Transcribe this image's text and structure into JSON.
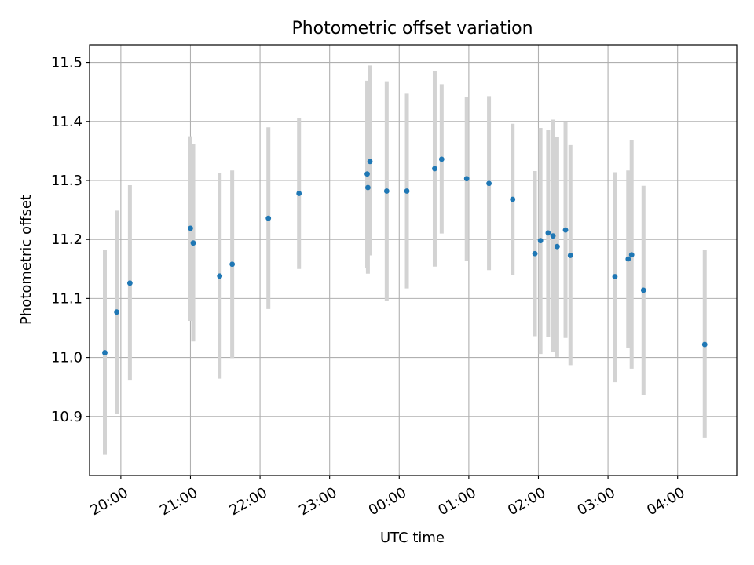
{
  "chart_data": {
    "type": "scatter",
    "title": "Photometric offset variation",
    "xlabel": "UTC time",
    "ylabel": "Photometric offset",
    "x_unit": "UTC clock time (hours; ticks after 24:00 wrap to next day)",
    "xlim": [
      19.55,
      28.85
    ],
    "ylim": [
      10.8,
      11.53
    ],
    "grid": true,
    "x_ticks": [
      {
        "value": 20,
        "label": "20:00"
      },
      {
        "value": 21,
        "label": "21:00"
      },
      {
        "value": 22,
        "label": "22:00"
      },
      {
        "value": 23,
        "label": "23:00"
      },
      {
        "value": 24,
        "label": "00:00"
      },
      {
        "value": 25,
        "label": "01:00"
      },
      {
        "value": 26,
        "label": "02:00"
      },
      {
        "value": 27,
        "label": "03:00"
      },
      {
        "value": 28,
        "label": "04:00"
      }
    ],
    "y_ticks": [
      {
        "value": 10.9,
        "label": "10.9"
      },
      {
        "value": 11.0,
        "label": "11.0"
      },
      {
        "value": 11.1,
        "label": "11.1"
      },
      {
        "value": 11.2,
        "label": "11.2"
      },
      {
        "value": 11.3,
        "label": "11.3"
      },
      {
        "value": 11.4,
        "label": "11.4"
      },
      {
        "value": 11.5,
        "label": "11.5"
      }
    ],
    "marker_color": "#1f77b4",
    "errorbar_color": "#d3d3d3",
    "points": [
      {
        "x": 19.77,
        "y": 11.008,
        "lo": 10.835,
        "hi": 11.182
      },
      {
        "x": 19.94,
        "y": 11.077,
        "lo": 10.905,
        "hi": 11.249
      },
      {
        "x": 20.13,
        "y": 11.126,
        "lo": 10.962,
        "hi": 11.292
      },
      {
        "x": 21.0,
        "y": 11.219,
        "lo": 11.062,
        "hi": 11.375
      },
      {
        "x": 21.04,
        "y": 11.194,
        "lo": 11.027,
        "hi": 11.362
      },
      {
        "x": 21.42,
        "y": 11.138,
        "lo": 10.964,
        "hi": 11.312
      },
      {
        "x": 21.6,
        "y": 11.158,
        "lo": 10.999,
        "hi": 11.317
      },
      {
        "x": 22.12,
        "y": 11.236,
        "lo": 11.082,
        "hi": 11.39
      },
      {
        "x": 22.56,
        "y": 11.278,
        "lo": 11.15,
        "hi": 11.405
      },
      {
        "x": 23.54,
        "y": 11.311,
        "lo": 11.152,
        "hi": 11.469
      },
      {
        "x": 23.55,
        "y": 11.288,
        "lo": 11.142,
        "hi": 11.435
      },
      {
        "x": 23.58,
        "y": 11.332,
        "lo": 11.173,
        "hi": 11.495
      },
      {
        "x": 23.82,
        "y": 11.282,
        "lo": 11.096,
        "hi": 11.468
      },
      {
        "x": 24.11,
        "y": 11.282,
        "lo": 11.117,
        "hi": 11.447
      },
      {
        "x": 24.51,
        "y": 11.32,
        "lo": 11.154,
        "hi": 11.485
      },
      {
        "x": 24.61,
        "y": 11.336,
        "lo": 11.21,
        "hi": 11.463
      },
      {
        "x": 24.97,
        "y": 11.303,
        "lo": 11.164,
        "hi": 11.442
      },
      {
        "x": 25.29,
        "y": 11.295,
        "lo": 11.148,
        "hi": 11.443
      },
      {
        "x": 25.63,
        "y": 11.268,
        "lo": 11.14,
        "hi": 11.396
      },
      {
        "x": 25.95,
        "y": 11.176,
        "lo": 11.036,
        "hi": 11.316
      },
      {
        "x": 26.03,
        "y": 11.198,
        "lo": 11.006,
        "hi": 11.389
      },
      {
        "x": 26.14,
        "y": 11.211,
        "lo": 11.034,
        "hi": 11.385
      },
      {
        "x": 26.21,
        "y": 11.206,
        "lo": 11.009,
        "hi": 11.403
      },
      {
        "x": 26.27,
        "y": 11.188,
        "lo": 11.001,
        "hi": 11.374
      },
      {
        "x": 26.39,
        "y": 11.216,
        "lo": 11.033,
        "hi": 11.399
      },
      {
        "x": 26.46,
        "y": 11.173,
        "lo": 10.987,
        "hi": 11.36
      },
      {
        "x": 27.1,
        "y": 11.137,
        "lo": 10.958,
        "hi": 11.314
      },
      {
        "x": 27.29,
        "y": 11.167,
        "lo": 11.016,
        "hi": 11.317
      },
      {
        "x": 27.34,
        "y": 11.174,
        "lo": 10.981,
        "hi": 11.369
      },
      {
        "x": 27.51,
        "y": 11.114,
        "lo": 10.937,
        "hi": 11.291
      },
      {
        "x": 28.39,
        "y": 11.022,
        "lo": 10.864,
        "hi": 11.183
      }
    ]
  }
}
